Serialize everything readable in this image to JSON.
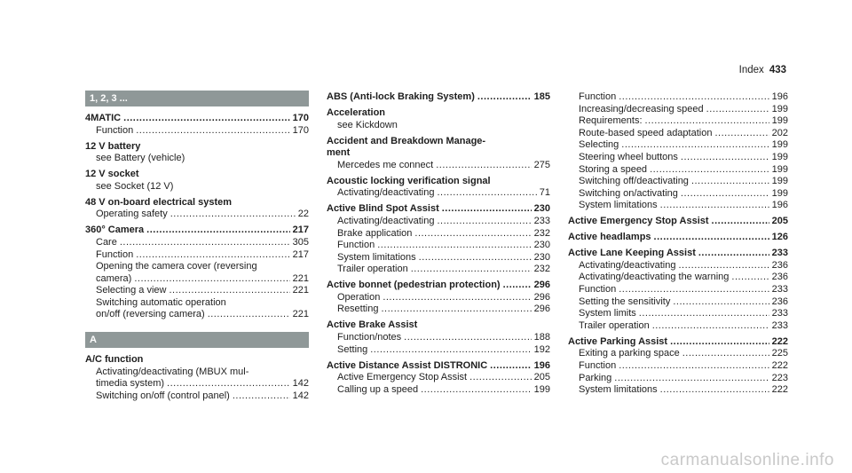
{
  "running_head": {
    "label": "Index",
    "page": "433"
  },
  "columns": [
    [
      {
        "header": "1, 2, 3 ..."
      },
      {
        "term": [
          "4MATIC"
        ],
        "page": "170",
        "subs": [
          {
            "lines": [
              "Function"
            ],
            "page": "170"
          }
        ]
      },
      {
        "term": [
          "12 V battery"
        ],
        "subs": [
          {
            "lines": [
              "see Battery (vehicle)"
            ]
          }
        ]
      },
      {
        "term": [
          "12 V socket"
        ],
        "subs": [
          {
            "lines": [
              "see Socket (12 V)"
            ]
          }
        ]
      },
      {
        "term": [
          "48 V on-board electrical system"
        ],
        "subs": [
          {
            "lines": [
              "Operating safety"
            ],
            "page": "22"
          }
        ]
      },
      {
        "term": [
          "360° Camera"
        ],
        "page": "217",
        "subs": [
          {
            "lines": [
              "Care"
            ],
            "page": "305"
          },
          {
            "lines": [
              "Function"
            ],
            "page": "217"
          },
          {
            "lines": [
              "Opening the camera cover (reversing",
              "camera)"
            ],
            "page": "221"
          },
          {
            "lines": [
              "Selecting a view"
            ],
            "page": "221"
          },
          {
            "lines": [
              "Switching automatic operation",
              "on/off (reversing camera)"
            ],
            "page": "221"
          }
        ]
      },
      {
        "header": "A"
      },
      {
        "term": [
          "A/C function"
        ],
        "subs": [
          {
            "lines": [
              "Activating/deactivating (MBUX mul-",
              "timedia system)"
            ],
            "page": "142"
          },
          {
            "lines": [
              "Switching on/off (control panel)"
            ],
            "page": "142"
          }
        ]
      }
    ],
    [
      {
        "term": [
          "ABS (Anti-lock Braking System)"
        ],
        "page": "185",
        "subs": []
      },
      {
        "term": [
          "Acceleration"
        ],
        "subs": [
          {
            "lines": [
              "see Kickdown"
            ]
          }
        ]
      },
      {
        "term": [
          "Accident and Breakdown Manage-",
          "ment"
        ],
        "subs": [
          {
            "lines": [
              "Mercedes me connect"
            ],
            "page": "275"
          }
        ]
      },
      {
        "term": [
          "Acoustic locking verification signal"
        ],
        "subs": [
          {
            "lines": [
              "Activating/deactivating"
            ],
            "page": "71"
          }
        ]
      },
      {
        "term": [
          "Active Blind Spot Assist"
        ],
        "page": "230",
        "subs": [
          {
            "lines": [
              "Activating/deactivating"
            ],
            "page": "233"
          },
          {
            "lines": [
              "Brake application"
            ],
            "page": "232"
          },
          {
            "lines": [
              "Function"
            ],
            "page": "230"
          },
          {
            "lines": [
              "System limitations"
            ],
            "page": "230"
          },
          {
            "lines": [
              "Trailer operation"
            ],
            "page": "232"
          }
        ]
      },
      {
        "term": [
          "Active bonnet (pedestrian protection)"
        ],
        "page": "296",
        "subs": [
          {
            "lines": [
              "Operation"
            ],
            "page": "296"
          },
          {
            "lines": [
              "Resetting"
            ],
            "page": "296"
          }
        ]
      },
      {
        "term": [
          "Active Brake Assist"
        ],
        "subs": [
          {
            "lines": [
              "Function/notes"
            ],
            "page": "188"
          },
          {
            "lines": [
              "Setting"
            ],
            "page": "192"
          }
        ]
      },
      {
        "term": [
          "Active Distance Assist DISTRONIC"
        ],
        "page": "196",
        "subs": [
          {
            "lines": [
              "Active Emergency Stop Assist"
            ],
            "page": "205"
          },
          {
            "lines": [
              "Calling up a speed"
            ],
            "page": "199"
          }
        ]
      }
    ],
    [
      {
        "subs": [
          {
            "lines": [
              "Function"
            ],
            "page": "196"
          },
          {
            "lines": [
              "Increasing/decreasing speed"
            ],
            "page": "199"
          },
          {
            "lines": [
              "Requirements:"
            ],
            "page": "199"
          },
          {
            "lines": [
              "Route-based speed adaptation"
            ],
            "page": "202"
          },
          {
            "lines": [
              "Selecting"
            ],
            "page": "199"
          },
          {
            "lines": [
              "Steering wheel buttons"
            ],
            "page": "199"
          },
          {
            "lines": [
              "Storing a speed"
            ],
            "page": "199"
          },
          {
            "lines": [
              "Switching off/deactivating"
            ],
            "page": "199"
          },
          {
            "lines": [
              "Switching on/activating"
            ],
            "page": "199"
          },
          {
            "lines": [
              "System limitations"
            ],
            "page": "196"
          }
        ]
      },
      {
        "term": [
          "Active Emergency Stop Assist"
        ],
        "page": "205",
        "subs": []
      },
      {
        "term": [
          "Active headlamps"
        ],
        "page": "126",
        "subs": []
      },
      {
        "term": [
          "Active Lane Keeping Assist"
        ],
        "page": "233",
        "subs": [
          {
            "lines": [
              "Activating/deactivating"
            ],
            "page": "236"
          },
          {
            "lines": [
              "Activating/deactivating the warning"
            ],
            "page": "236"
          },
          {
            "lines": [
              "Function"
            ],
            "page": "233"
          },
          {
            "lines": [
              "Setting the sensitivity"
            ],
            "page": "236"
          },
          {
            "lines": [
              "System limits"
            ],
            "page": "233"
          },
          {
            "lines": [
              "Trailer operation"
            ],
            "page": "233"
          }
        ]
      },
      {
        "term": [
          "Active Parking Assist"
        ],
        "page": "222",
        "subs": [
          {
            "lines": [
              "Exiting a parking space"
            ],
            "page": "225"
          },
          {
            "lines": [
              "Function"
            ],
            "page": "222"
          },
          {
            "lines": [
              "Parking"
            ],
            "page": "223"
          },
          {
            "lines": [
              "System limitations"
            ],
            "page": "222"
          }
        ]
      }
    ]
  ],
  "watermark": "carmanualsonline.info"
}
